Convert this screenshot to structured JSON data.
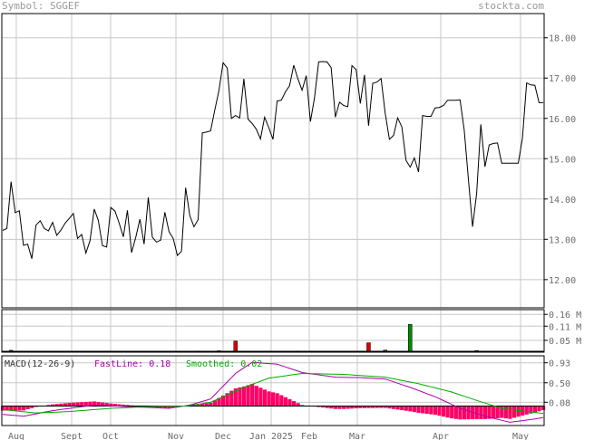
{
  "header": {
    "symbol": "Symbol: SGGEF",
    "brand": "stockta.com"
  },
  "chart_data": [
    {
      "type": "line",
      "panel": "price",
      "ylim": [
        11.3,
        18.6
      ],
      "yticks": [
        "18.00",
        "17.00",
        "16.00",
        "15.00",
        "14.00",
        "13.00",
        "12.00"
      ],
      "ytick_values": [
        18,
        17,
        16,
        15,
        14,
        13,
        12
      ],
      "grid": true,
      "xtick_labels": [
        "Aug",
        "Sept",
        "Oct",
        "Nov",
        "Dec",
        "Jan 2025",
        "Feb",
        "Mar",
        "Apr",
        "May"
      ],
      "values": [
        13.22,
        13.27,
        14.43,
        13.66,
        13.71,
        12.85,
        12.88,
        12.52,
        13.35,
        13.46,
        13.27,
        13.21,
        13.42,
        13.1,
        13.23,
        13.4,
        13.52,
        13.64,
        13.02,
        13.12,
        12.66,
        12.97,
        13.75,
        13.47,
        12.84,
        12.81,
        13.79,
        13.7,
        13.4,
        13.06,
        13.72,
        12.67,
        13.05,
        13.5,
        12.88,
        14.04,
        13.05,
        12.93,
        12.98,
        13.67,
        13.19,
        13.02,
        12.6,
        12.7,
        14.28,
        13.59,
        13.31,
        13.49,
        15.64,
        15.66,
        15.69,
        16.2,
        16.69,
        17.38,
        17.25,
        16.0,
        16.07,
        16.01,
        16.98,
        15.98,
        15.87,
        15.73,
        15.49,
        16.03,
        15.77,
        15.48,
        16.43,
        16.45,
        16.66,
        16.81,
        17.32,
        16.98,
        16.7,
        17.06,
        15.92,
        16.51,
        17.4,
        17.41,
        17.4,
        17.26,
        16.03,
        16.4,
        16.32,
        16.29,
        17.31,
        17.21,
        16.37,
        17.08,
        15.82,
        16.87,
        16.9,
        16.99,
        16.12,
        15.48,
        15.58,
        16.01,
        15.79,
        14.96,
        14.79,
        15.02,
        14.67,
        16.07,
        16.05,
        16.05,
        16.26,
        16.27,
        16.32,
        16.45,
        16.45,
        16.45,
        16.46,
        15.71,
        14.49,
        13.31,
        14.14,
        15.85,
        14.8,
        15.34,
        15.38,
        15.39,
        14.89,
        14.89,
        14.89,
        14.89,
        14.89,
        15.51,
        16.88,
        16.83,
        16.82,
        16.39,
        16.39
      ]
    },
    {
      "type": "bar",
      "panel": "volume",
      "unit": "M",
      "ylim": [
        0,
        0.18
      ],
      "yticks": [
        "0.16 M",
        "0.11 M",
        "0.05 M"
      ],
      "ytick_values": [
        0.16,
        0.11,
        0.05
      ],
      "bars": [
        {
          "i": 2,
          "v": 0.008,
          "c": "green"
        },
        {
          "i": 21,
          "v": 0.004,
          "c": "red"
        },
        {
          "i": 47,
          "v": 0.005,
          "c": "green"
        },
        {
          "i": 52,
          "v": 0.006,
          "c": "green"
        },
        {
          "i": 56,
          "v": 0.047,
          "c": "red"
        },
        {
          "i": 71,
          "v": 0.005,
          "c": "red"
        },
        {
          "i": 88,
          "v": 0.04,
          "c": "red"
        },
        {
          "i": 92,
          "v": 0.009,
          "c": "green"
        },
        {
          "i": 98,
          "v": 0.118,
          "c": "green"
        },
        {
          "i": 114,
          "v": 0.007,
          "c": "green"
        },
        {
          "i": 143,
          "v": 0.004,
          "c": "red"
        }
      ]
    },
    {
      "type": "line",
      "panel": "macd",
      "title": "MACD(12-26-9)",
      "fast_label": "FastLine: 0.18",
      "smooth_label": "Smoothed: 0.02",
      "ylim": [
        -0.42,
        1.08
      ],
      "yticks": [
        "0.93",
        "0.50",
        "0.08"
      ],
      "ytick_values": [
        0.93,
        0.5,
        0.08
      ],
      "baseline": 0,
      "fast_keypoints": [
        [
          0,
          -0.18
        ],
        [
          5,
          -0.22
        ],
        [
          12,
          -0.1
        ],
        [
          22,
          0.02
        ],
        [
          32,
          -0.02
        ],
        [
          40,
          -0.05
        ],
        [
          45,
          0.02
        ],
        [
          50,
          0.15
        ],
        [
          56,
          0.7
        ],
        [
          60,
          0.94
        ],
        [
          66,
          0.9
        ],
        [
          72,
          0.72
        ],
        [
          80,
          0.62
        ],
        [
          86,
          0.61
        ],
        [
          92,
          0.58
        ],
        [
          98,
          0.4
        ],
        [
          104,
          0.2
        ],
        [
          110,
          -0.05
        ],
        [
          116,
          -0.22
        ],
        [
          122,
          -0.35
        ],
        [
          128,
          -0.28
        ],
        [
          134,
          -0.18
        ],
        [
          140,
          0.12
        ],
        [
          145,
          0.18
        ]
      ],
      "smooth_keypoints": [
        [
          0,
          -0.08
        ],
        [
          8,
          -0.15
        ],
        [
          16,
          -0.12
        ],
        [
          26,
          -0.05
        ],
        [
          36,
          -0.01
        ],
        [
          44,
          0.0
        ],
        [
          50,
          0.08
        ],
        [
          58,
          0.4
        ],
        [
          64,
          0.6
        ],
        [
          72,
          0.7
        ],
        [
          82,
          0.68
        ],
        [
          92,
          0.62
        ],
        [
          100,
          0.48
        ],
        [
          108,
          0.3
        ],
        [
          114,
          0.12
        ],
        [
          120,
          -0.05
        ],
        [
          126,
          -0.12
        ],
        [
          132,
          -0.18
        ],
        [
          140,
          -0.06
        ],
        [
          145,
          0.02
        ]
      ],
      "histogram_color": "#ff0066",
      "fast_color": "#aa00aa",
      "smooth_color": "#00aa00"
    }
  ]
}
